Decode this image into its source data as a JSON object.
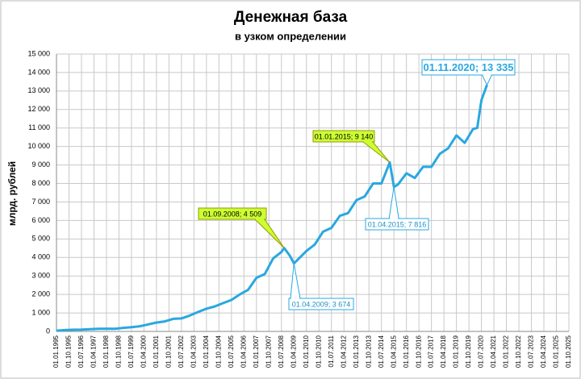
{
  "chart_data": {
    "type": "line",
    "title": "Денежная база",
    "subtitle": "в узком определении",
    "y_label": "млрд. рублей",
    "x": [
      "01.01.1995",
      "01.07.1995",
      "01.01.1996",
      "01.07.1996",
      "01.01.1997",
      "01.07.1997",
      "01.01.1998",
      "01.07.1998",
      "01.01.1999",
      "01.07.1999",
      "01.01.2000",
      "01.07.2000",
      "01.01.2001",
      "01.07.2001",
      "01.01.2002",
      "01.07.2002",
      "01.01.2003",
      "01.07.2003",
      "01.01.2004",
      "01.07.2004",
      "01.01.2005",
      "01.07.2005",
      "01.01.2006",
      "01.07.2006",
      "01.01.2007",
      "01.07.2007",
      "01.01.2008",
      "01.07.2008",
      "01.09.2008",
      "01.01.2009",
      "01.04.2009",
      "01.07.2009",
      "01.01.2010",
      "01.07.2010",
      "01.01.2011",
      "01.07.2011",
      "01.01.2012",
      "01.07.2012",
      "01.01.2013",
      "01.07.2013",
      "01.01.2014",
      "01.07.2014",
      "01.01.2015",
      "01.04.2015",
      "01.07.2015",
      "01.01.2016",
      "01.07.2016",
      "01.01.2017",
      "01.07.2017",
      "01.01.2018",
      "01.07.2018",
      "01.01.2019",
      "01.07.2019",
      "01.01.2020",
      "01.04.2020",
      "01.07.2020",
      "01.11.2020"
    ],
    "series": [
      {
        "name": "Денежная база",
        "color": "#29a8e0",
        "values": [
          40,
          70,
          90,
          100,
          120,
          140,
          150,
          140,
          190,
          230,
          280,
          380,
          480,
          540,
          680,
          700,
          860,
          1050,
          1230,
          1350,
          1530,
          1700,
          2000,
          2250,
          2900,
          3100,
          3950,
          4300,
          4509,
          4100,
          3674,
          3900,
          4350,
          4700,
          5400,
          5600,
          6250,
          6400,
          7100,
          7300,
          8000,
          8000,
          9140,
          7816,
          7950,
          8550,
          8300,
          8900,
          8900,
          9600,
          9900,
          10600,
          10200,
          10950,
          11000,
          12500,
          13335
        ]
      }
    ],
    "xlim": [
      "01.01.1995",
      "01.10.2025"
    ],
    "xticks": [
      "01.01.1995",
      "01.10.1995",
      "01.07.1996",
      "01.04.1997",
      "01.01.1998",
      "01.10.1998",
      "01.07.1999",
      "01.04.2000",
      "01.01.2001",
      "01.10.2001",
      "01.07.2002",
      "01.04.2003",
      "01.01.2004",
      "01.10.2004",
      "01.07.2005",
      "01.04.2006",
      "01.01.2007",
      "01.10.2007",
      "01.07.2008",
      "01.04.2009",
      "01.01.2010",
      "01.10.2010",
      "01.07.2011",
      "01.04.2012",
      "01.01.2013",
      "01.10.2013",
      "01.07.2014",
      "01.04.2015",
      "01.01.2016",
      "01.10.2016",
      "01.07.2017",
      "01.04.2018",
      "01.01.2019",
      "01.10.2019",
      "01.07.2020",
      "01.04.2021",
      "01.01.2022",
      "01.10.2022",
      "01.07.2023",
      "01.04.2024",
      "01.01.2025",
      "01.10.2025"
    ],
    "ylim": [
      0,
      15000
    ],
    "yticks": [
      0,
      {
        "value": 1000,
        "label": "1 000"
      },
      {
        "value": 2000,
        "label": "2 000"
      },
      {
        "value": 3000,
        "label": "3 000"
      },
      {
        "value": 4000,
        "label": "4 000"
      },
      {
        "value": 5000,
        "label": "5 000"
      },
      {
        "value": 6000,
        "label": "6 000"
      },
      {
        "value": 7000,
        "label": "7 000"
      },
      {
        "value": 8000,
        "label": "8 000"
      },
      {
        "value": 9000,
        "label": "9 000"
      },
      {
        "value": 10000,
        "label": "10 000"
      },
      {
        "value": 11000,
        "label": "11 000"
      },
      {
        "value": 12000,
        "label": "12 000"
      },
      {
        "value": 13000,
        "label": "13 000"
      },
      {
        "value": 14000,
        "label": "14 000"
      },
      {
        "value": 15000,
        "label": "15 000"
      }
    ],
    "grid": true,
    "annotations": [
      {
        "text": "01.09.2008; 4 509",
        "x": "01.09.2008",
        "y": 4509,
        "background": "#ccff33",
        "border": "#999900",
        "text_color": "#000000"
      },
      {
        "text": "01.01.2015; 9 140",
        "x": "01.01.2015",
        "y": 9140,
        "background": "#ccff33",
        "border": "#999900",
        "text_color": "#000000"
      },
      {
        "text": "01.04.2015; 7 816",
        "x": "01.04.2015",
        "y": 7816,
        "background": "#ffffff",
        "border": "#29a8e0",
        "text_color": "#1f8fc4"
      },
      {
        "text": "01.04.2009; 3 674",
        "x": "01.04.2009",
        "y": 3674,
        "background": "#ffffff",
        "border": "#29a8e0",
        "text_color": "#1f8fc4"
      },
      {
        "text": "01.11.2020; 13 335",
        "x": "01.11.2020",
        "y": 13335,
        "background": "#ffffff",
        "border": "#29a8e0",
        "text_color": "#29a8e0"
      }
    ]
  }
}
